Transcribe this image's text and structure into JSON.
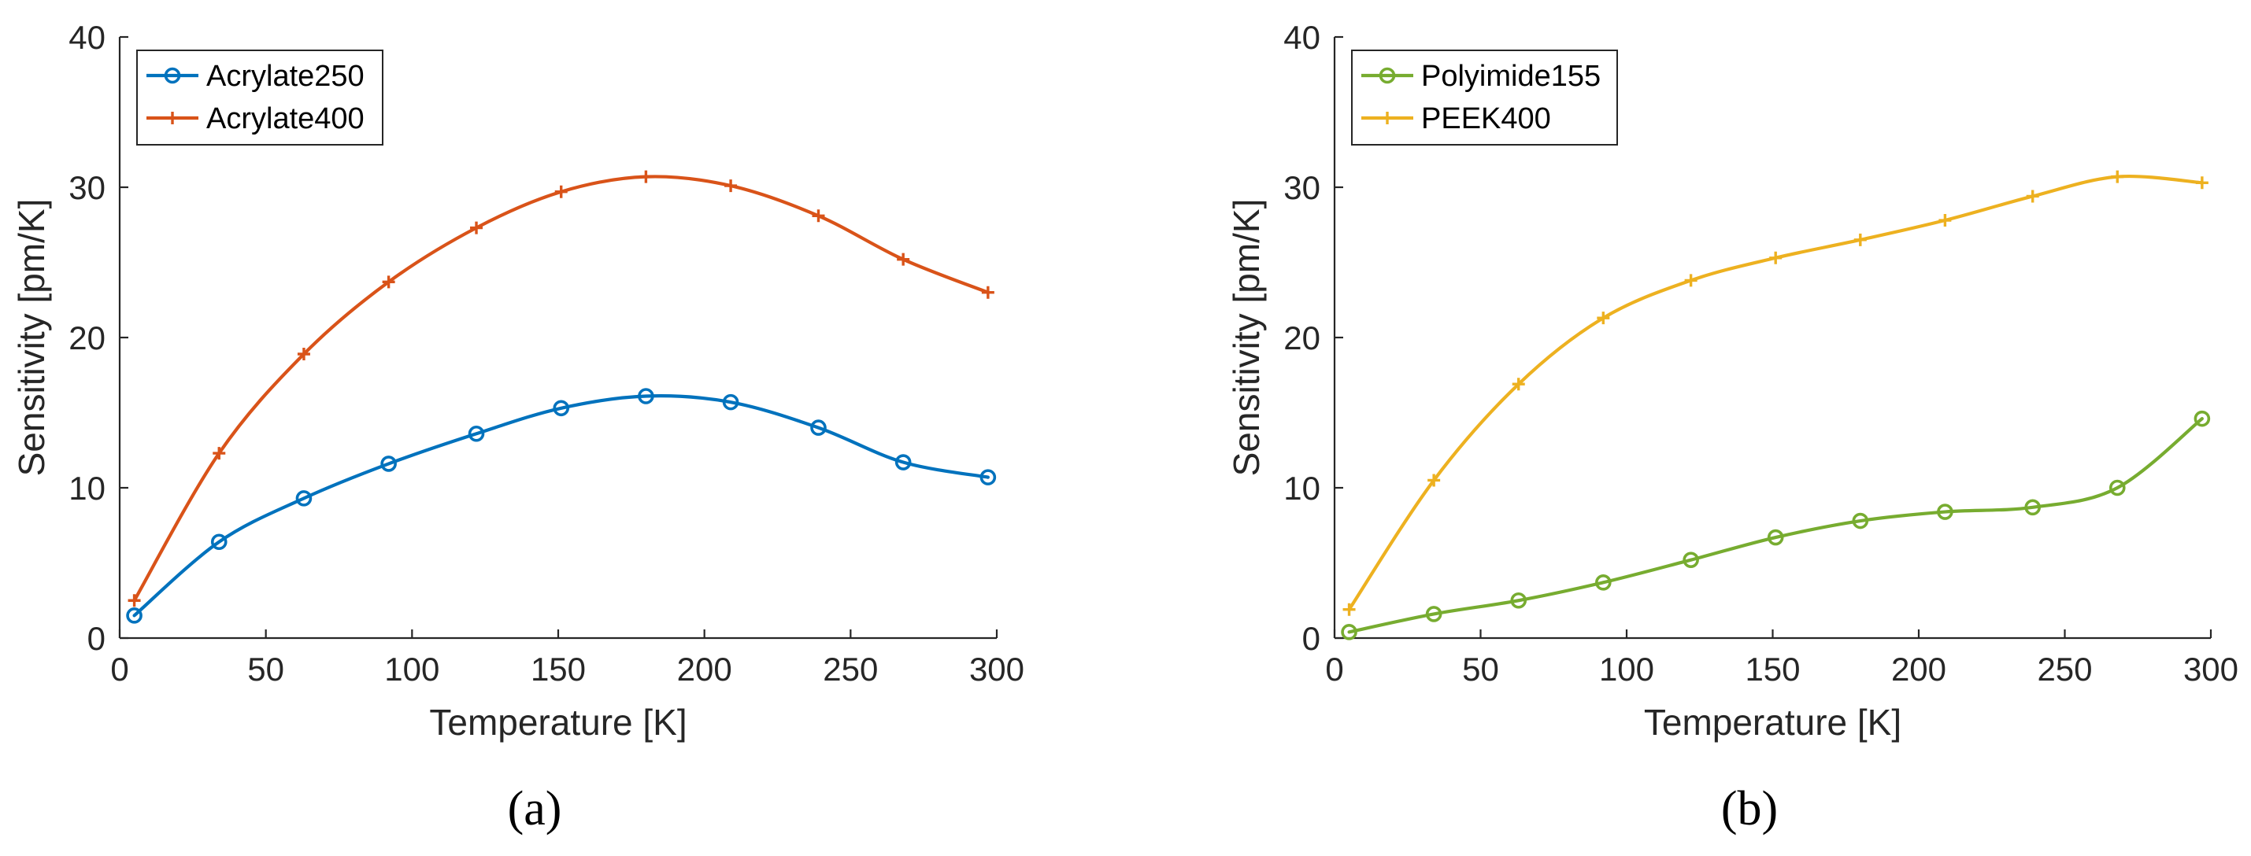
{
  "chart_data": [
    {
      "type": "line",
      "panel_label": "(a)",
      "xlabel": "Temperature [K]",
      "ylabel": "Sensitivity [pm/K]",
      "xlim": [
        0,
        300
      ],
      "ylim": [
        0,
        40
      ],
      "xticks": [
        0,
        50,
        100,
        150,
        200,
        250,
        300
      ],
      "yticks": [
        0,
        10,
        20,
        30,
        40
      ],
      "grid": false,
      "legend_position": "top-left",
      "series": [
        {
          "name": "Acrylate250",
          "color": "#0072BD",
          "marker": "circle",
          "x": [
            5,
            34,
            63,
            92,
            122,
            151,
            180,
            209,
            239,
            268,
            297
          ],
          "y": [
            1.5,
            6.4,
            9.3,
            11.6,
            13.6,
            15.3,
            16.1,
            15.7,
            14.0,
            11.7,
            10.7
          ]
        },
        {
          "name": "Acrylate400",
          "color": "#D95319",
          "marker": "plus",
          "x": [
            5,
            34,
            63,
            92,
            122,
            151,
            180,
            209,
            239,
            268,
            297
          ],
          "y": [
            2.5,
            12.3,
            18.9,
            23.7,
            27.3,
            29.7,
            30.7,
            30.1,
            28.1,
            25.2,
            23.0
          ]
        }
      ]
    },
    {
      "type": "line",
      "panel_label": "(b)",
      "xlabel": "Temperature [K]",
      "ylabel": "Sensitivity [pm/K]",
      "xlim": [
        0,
        300
      ],
      "ylim": [
        0,
        40
      ],
      "xticks": [
        0,
        50,
        100,
        150,
        200,
        250,
        300
      ],
      "yticks": [
        0,
        10,
        20,
        30,
        40
      ],
      "grid": false,
      "legend_position": "top-left",
      "series": [
        {
          "name": "Polyimide155",
          "color": "#77AC30",
          "marker": "circle",
          "x": [
            5,
            34,
            63,
            92,
            122,
            151,
            180,
            209,
            239,
            268,
            297
          ],
          "y": [
            0.4,
            1.6,
            2.5,
            3.7,
            5.2,
            6.7,
            7.8,
            8.4,
            8.7,
            10.0,
            14.6
          ]
        },
        {
          "name": "PEEK400",
          "color": "#EDB120",
          "marker": "plus",
          "x": [
            5,
            34,
            63,
            92,
            122,
            151,
            180,
            209,
            239,
            268,
            297
          ],
          "y": [
            1.9,
            10.5,
            16.9,
            21.3,
            23.8,
            25.3,
            26.5,
            27.8,
            29.4,
            30.7,
            30.3
          ]
        }
      ]
    }
  ]
}
